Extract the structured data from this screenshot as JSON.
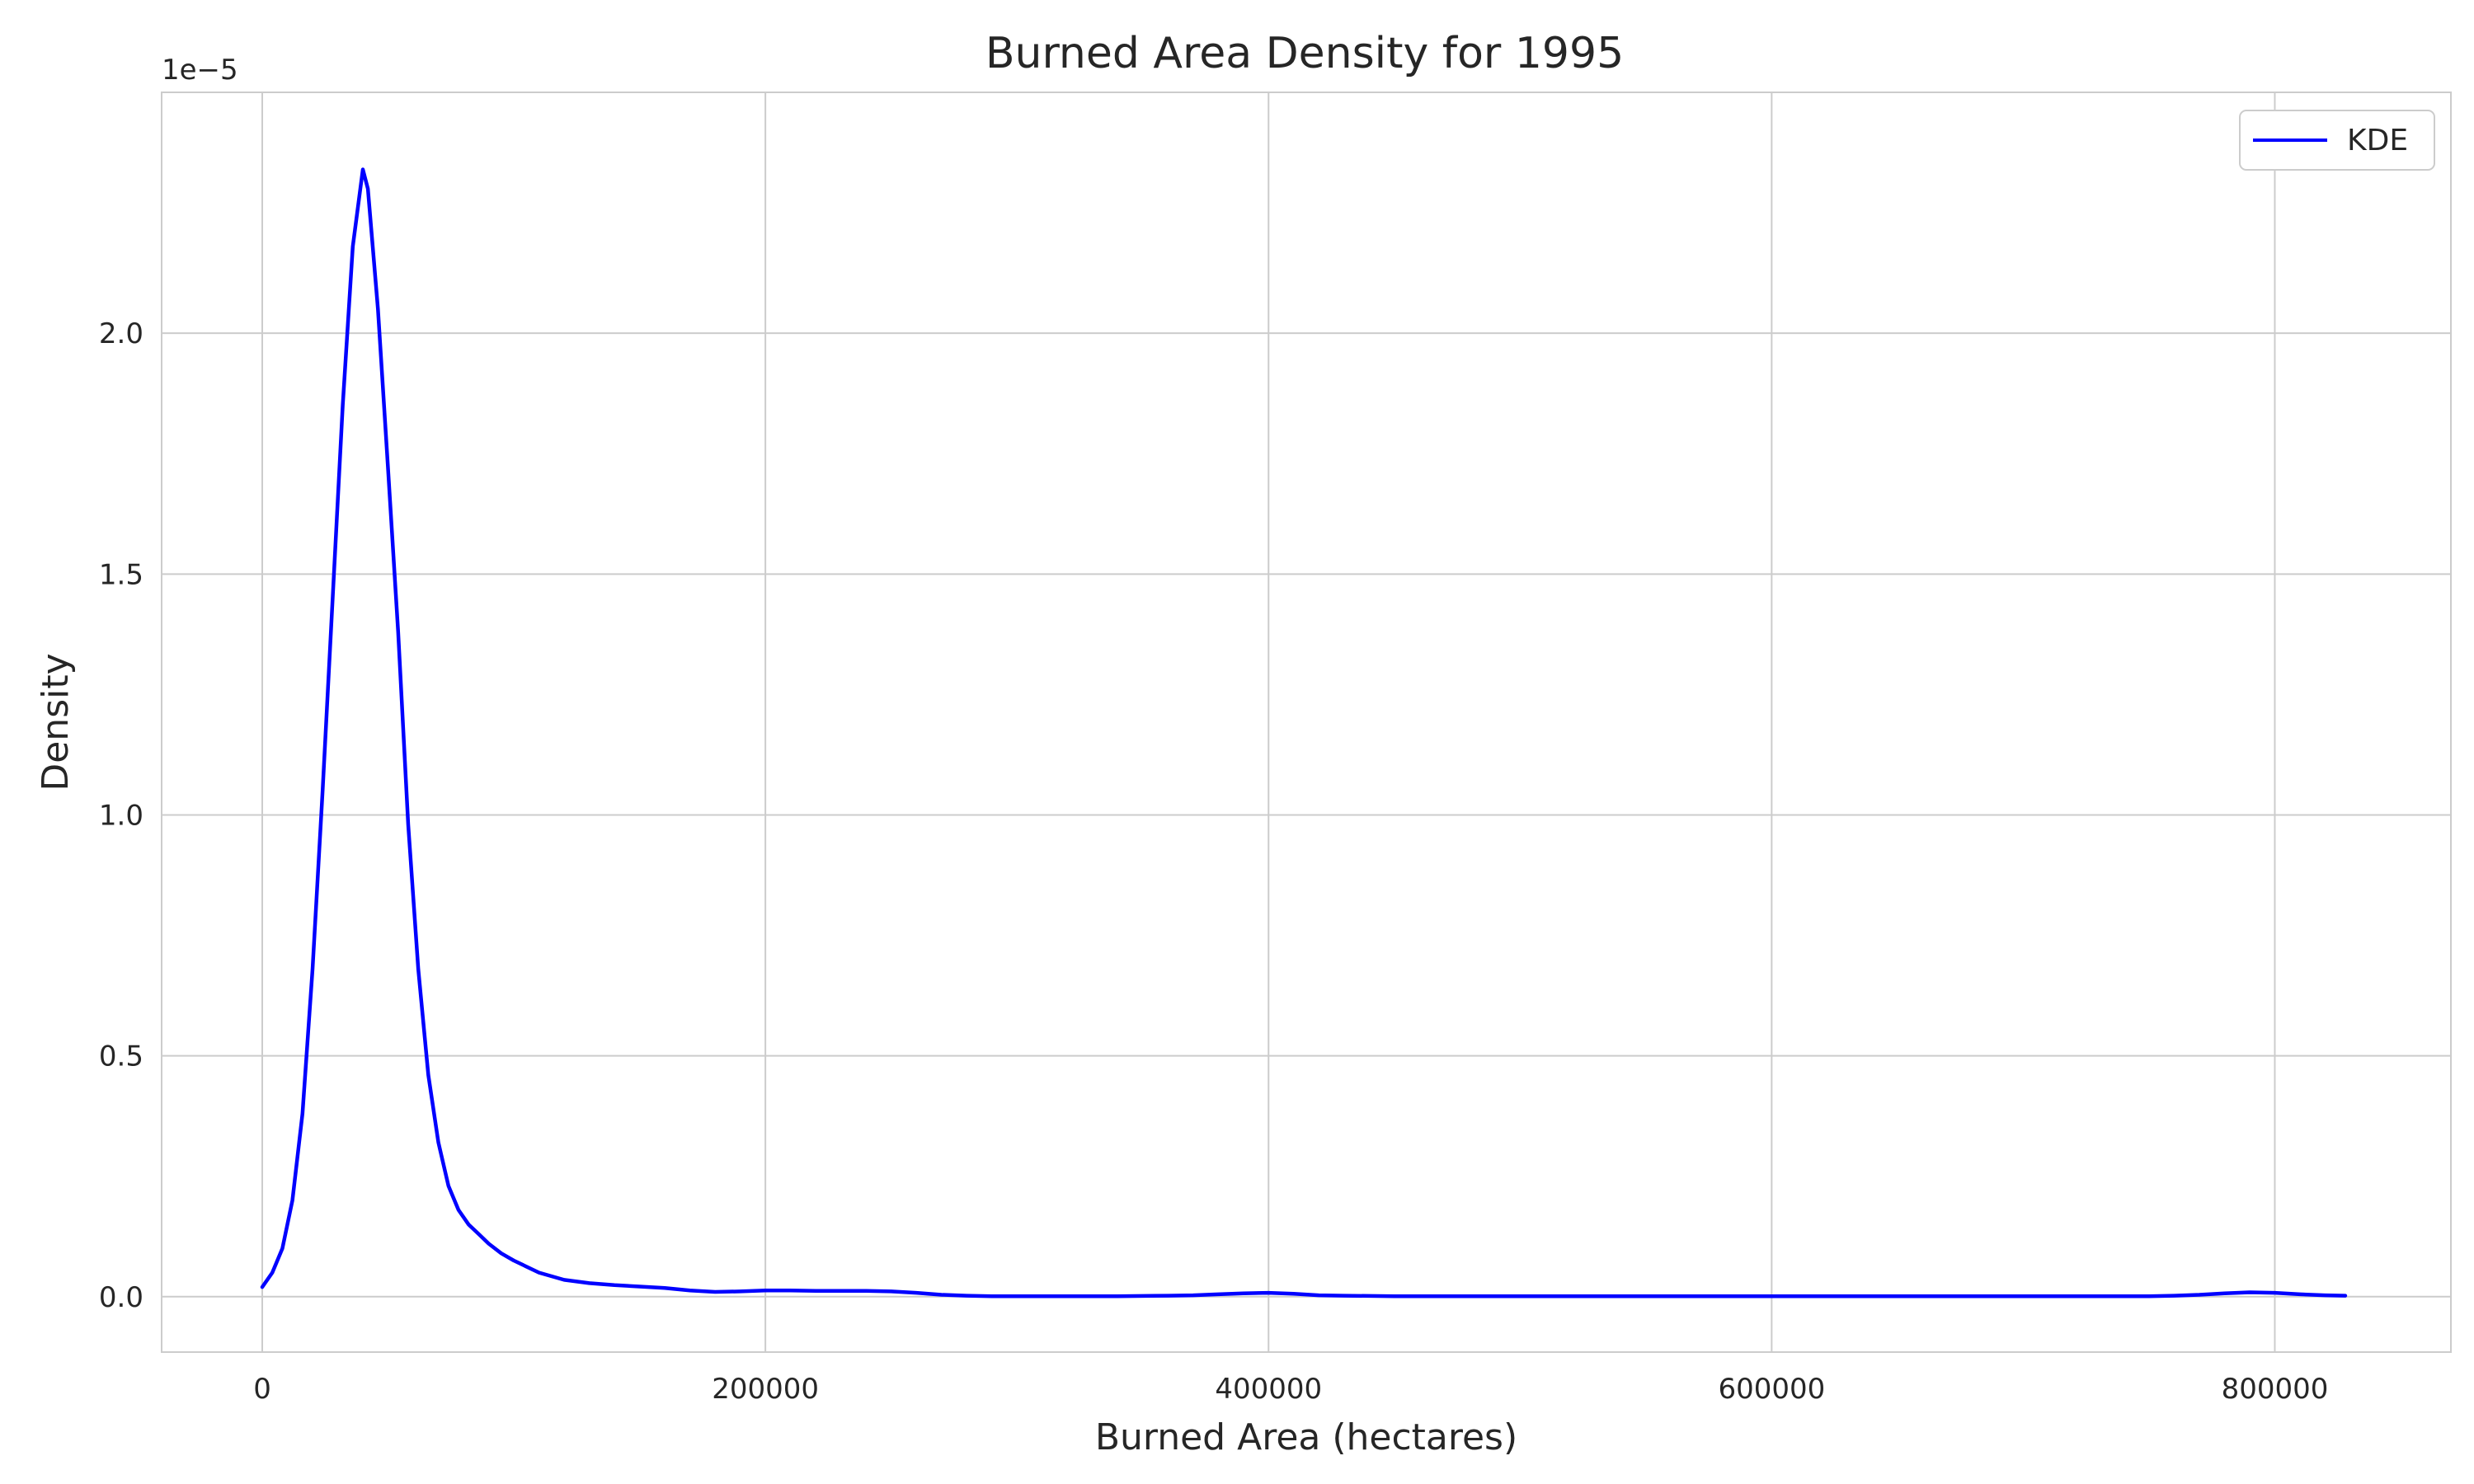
{
  "chart_data": {
    "type": "line",
    "title": "Burned Area Density for 1995",
    "xlabel": "Burned Area (hectares)",
    "ylabel": "Density",
    "y_offset_label": "1e−5",
    "xlim": [
      -40000,
      870000
    ],
    "ylim": [
      -0.115,
      2.5
    ],
    "y_scale_note": "values in units of 1e-5",
    "x_ticks": [
      0,
      200000,
      400000,
      600000,
      800000
    ],
    "x_tick_labels": [
      "0",
      "200000",
      "400000",
      "600000",
      "800000"
    ],
    "y_ticks": [
      0.0,
      0.5,
      1.0,
      1.5,
      2.0
    ],
    "y_tick_labels": [
      "0.0",
      "0.5",
      "1.0",
      "1.5",
      "2.0"
    ],
    "grid": true,
    "legend_position": "top-right",
    "series": [
      {
        "name": "KDE",
        "color": "#0000ff",
        "x": [
          0,
          4000,
          8000,
          12000,
          16000,
          20000,
          24000,
          28000,
          32000,
          36000,
          40000,
          42000,
          46000,
          50000,
          54000,
          58000,
          62000,
          66000,
          70000,
          74000,
          78000,
          82000,
          86000,
          90000,
          95000,
          100000,
          110000,
          120000,
          130000,
          140000,
          150000,
          160000,
          170000,
          180000,
          190000,
          200000,
          210000,
          220000,
          230000,
          240000,
          250000,
          260000,
          270000,
          280000,
          290000,
          300000,
          320000,
          340000,
          360000,
          370000,
          380000,
          390000,
          400000,
          410000,
          420000,
          430000,
          450000,
          500000,
          550000,
          600000,
          650000,
          700000,
          750000,
          760000,
          770000,
          780000,
          790000,
          800000,
          810000,
          820000,
          828000
        ],
        "y": [
          0.02,
          0.05,
          0.1,
          0.2,
          0.38,
          0.68,
          1.05,
          1.45,
          1.85,
          2.18,
          2.34,
          2.3,
          2.05,
          1.72,
          1.38,
          0.98,
          0.68,
          0.46,
          0.32,
          0.23,
          0.18,
          0.15,
          0.13,
          0.11,
          0.09,
          0.075,
          0.05,
          0.035,
          0.028,
          0.024,
          0.021,
          0.018,
          0.013,
          0.01,
          0.011,
          0.013,
          0.013,
          0.012,
          0.012,
          0.012,
          0.011,
          0.008,
          0.004,
          0.002,
          0.001,
          0.001,
          0.001,
          0.001,
          0.002,
          0.003,
          0.005,
          0.007,
          0.008,
          0.006,
          0.003,
          0.002,
          0.001,
          0.001,
          0.001,
          0.001,
          0.001,
          0.001,
          0.001,
          0.002,
          0.004,
          0.007,
          0.009,
          0.008,
          0.005,
          0.003,
          0.002
        ]
      }
    ]
  }
}
